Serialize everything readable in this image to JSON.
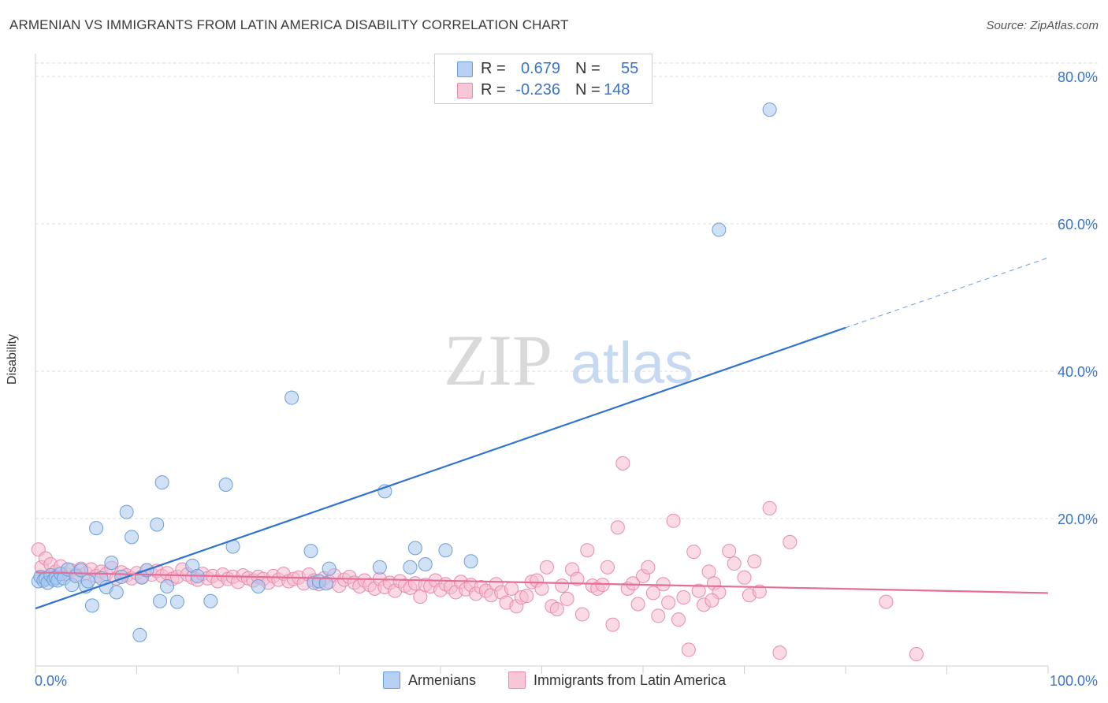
{
  "title": "ARMENIAN VS IMMIGRANTS FROM LATIN AMERICA DISABILITY CORRELATION CHART",
  "source": "Source: ZipAtlas.com",
  "watermark": {
    "zip": "ZIP",
    "atlas": "atlas"
  },
  "legend_top": {
    "rows": [
      {
        "r_label": "R =",
        "r_value": "0.679",
        "n_label": "N =",
        "n_value": "55"
      },
      {
        "r_label": "R =",
        "r_value": "-0.236",
        "n_label": "N =",
        "n_value": "148"
      }
    ]
  },
  "legend_bottom": {
    "items": [
      "Armenians",
      "Immigrants from Latin America"
    ]
  },
  "colors": {
    "blue_fill": "#a9c8ef",
    "blue_stroke": "#6a9fdc",
    "blue_line": "#2f72cf",
    "pink_fill": "#f5bcd0",
    "pink_stroke": "#e98aac",
    "pink_line": "#e46e98",
    "axis_text": "#3a74c9",
    "grid": "#dcdcdc"
  },
  "chart_data": {
    "type": "scatter",
    "title": "ARMENIAN VS IMMIGRANTS FROM LATIN AMERICA DISABILITY CORRELATION CHART",
    "xlabel": "",
    "ylabel": "Disability",
    "xlim": [
      0,
      100
    ],
    "ylim": [
      0,
      80
    ],
    "x_tick_labels": [
      "0.0%",
      "100.0%"
    ],
    "y_ticks": [
      20,
      40,
      60,
      80
    ],
    "y_tick_labels": [
      "20.0%",
      "40.0%",
      "60.0%",
      "80.0%"
    ],
    "grid": true,
    "series": [
      {
        "name": "Armenians",
        "trend": {
          "x": [
            0,
            80
          ],
          "y": [
            7.8,
            45.9
          ],
          "dashed_to": [
            100,
            55.4
          ]
        },
        "points": [
          [
            0.3,
            11.5
          ],
          [
            0.5,
            12.1
          ],
          [
            0.8,
            11.6
          ],
          [
            1.0,
            11.8
          ],
          [
            1.2,
            11.3
          ],
          [
            1.5,
            12.3
          ],
          [
            1.8,
            11.7
          ],
          [
            2.0,
            12.0
          ],
          [
            2.2,
            11.6
          ],
          [
            2.5,
            12.5
          ],
          [
            2.8,
            11.9
          ],
          [
            3.2,
            13.1
          ],
          [
            3.6,
            11.0
          ],
          [
            4.0,
            12.2
          ],
          [
            4.5,
            13.0
          ],
          [
            5.0,
            10.8
          ],
          [
            5.2,
            11.5
          ],
          [
            5.6,
            8.2
          ],
          [
            6.0,
            18.7
          ],
          [
            6.5,
            11.9
          ],
          [
            7.0,
            10.7
          ],
          [
            7.5,
            14.0
          ],
          [
            8.0,
            10.0
          ],
          [
            8.5,
            12.1
          ],
          [
            9.0,
            20.9
          ],
          [
            9.5,
            17.5
          ],
          [
            10.3,
            4.2
          ],
          [
            10.5,
            12.0
          ],
          [
            11.0,
            13.0
          ],
          [
            12.0,
            19.2
          ],
          [
            12.3,
            8.8
          ],
          [
            12.5,
            24.9
          ],
          [
            13.0,
            10.8
          ],
          [
            14.0,
            8.7
          ],
          [
            15.5,
            13.6
          ],
          [
            16.0,
            12.2
          ],
          [
            17.3,
            8.8
          ],
          [
            18.8,
            24.6
          ],
          [
            19.5,
            16.2
          ],
          [
            22.0,
            10.8
          ],
          [
            25.3,
            36.4
          ],
          [
            27.2,
            15.6
          ],
          [
            27.5,
            11.3
          ],
          [
            28.0,
            11.5
          ],
          [
            28.7,
            11.2
          ],
          [
            29.0,
            13.2
          ],
          [
            34.5,
            23.7
          ],
          [
            34.0,
            13.4
          ],
          [
            37.0,
            13.4
          ],
          [
            37.5,
            16.0
          ],
          [
            38.5,
            13.8
          ],
          [
            40.5,
            15.7
          ],
          [
            43.0,
            14.2
          ],
          [
            67.5,
            59.2
          ],
          [
            72.5,
            75.5
          ]
        ]
      },
      {
        "name": "Immigrants from Latin America",
        "trend": {
          "x": [
            0,
            100
          ],
          "y": [
            12.7,
            9.9
          ]
        },
        "points": [
          [
            0.3,
            15.8
          ],
          [
            0.6,
            13.4
          ],
          [
            1.0,
            14.6
          ],
          [
            1.5,
            13.8
          ],
          [
            2.0,
            12.8
          ],
          [
            2.5,
            13.5
          ],
          [
            3.0,
            12.5
          ],
          [
            3.5,
            13.0
          ],
          [
            4.0,
            12.4
          ],
          [
            4.5,
            13.2
          ],
          [
            5.0,
            12.6
          ],
          [
            5.5,
            13.1
          ],
          [
            6.0,
            12.2
          ],
          [
            6.5,
            12.8
          ],
          [
            7.0,
            12.5
          ],
          [
            7.5,
            13.3
          ],
          [
            8.0,
            11.9
          ],
          [
            8.5,
            12.7
          ],
          [
            9.0,
            12.3
          ],
          [
            9.5,
            11.9
          ],
          [
            10.0,
            12.6
          ],
          [
            10.5,
            12.1
          ],
          [
            11.0,
            13.0
          ],
          [
            11.5,
            12.4
          ],
          [
            12.0,
            12.9
          ],
          [
            12.5,
            12.2
          ],
          [
            13.0,
            12.6
          ],
          [
            13.5,
            11.8
          ],
          [
            14.0,
            12.1
          ],
          [
            14.5,
            13.1
          ],
          [
            15.0,
            12.4
          ],
          [
            15.5,
            12.0
          ],
          [
            16.0,
            11.7
          ],
          [
            16.5,
            12.5
          ],
          [
            17.0,
            11.9
          ],
          [
            17.5,
            12.2
          ],
          [
            18.0,
            11.5
          ],
          [
            18.5,
            12.4
          ],
          [
            19.0,
            11.8
          ],
          [
            19.5,
            12.1
          ],
          [
            20.0,
            11.4
          ],
          [
            20.5,
            12.3
          ],
          [
            21.0,
            11.9
          ],
          [
            21.5,
            11.6
          ],
          [
            22.0,
            12.1
          ],
          [
            22.5,
            11.8
          ],
          [
            23.0,
            11.3
          ],
          [
            23.5,
            12.2
          ],
          [
            24.0,
            11.7
          ],
          [
            24.5,
            12.5
          ],
          [
            25.0,
            11.5
          ],
          [
            25.5,
            11.8
          ],
          [
            26.0,
            12.0
          ],
          [
            26.5,
            11.2
          ],
          [
            27.0,
            12.4
          ],
          [
            27.5,
            11.6
          ],
          [
            28.0,
            11.1
          ],
          [
            28.5,
            11.9
          ],
          [
            29.0,
            11.4
          ],
          [
            29.5,
            12.3
          ],
          [
            30.0,
            10.9
          ],
          [
            30.5,
            11.7
          ],
          [
            31.0,
            12.1
          ],
          [
            31.5,
            11.3
          ],
          [
            32.0,
            10.8
          ],
          [
            32.5,
            11.6
          ],
          [
            33.0,
            11.0
          ],
          [
            33.5,
            10.5
          ],
          [
            34.0,
            11.8
          ],
          [
            34.5,
            10.7
          ],
          [
            35.0,
            11.3
          ],
          [
            35.5,
            10.2
          ],
          [
            36.0,
            11.5
          ],
          [
            36.5,
            10.9
          ],
          [
            37.0,
            10.6
          ],
          [
            37.5,
            11.2
          ],
          [
            38.0,
            9.4
          ],
          [
            38.5,
            11.0
          ],
          [
            39.0,
            10.8
          ],
          [
            39.5,
            11.6
          ],
          [
            40.0,
            10.3
          ],
          [
            40.5,
            11.1
          ],
          [
            41.0,
            10.7
          ],
          [
            41.5,
            10.0
          ],
          [
            42.0,
            11.4
          ],
          [
            42.5,
            10.4
          ],
          [
            43.0,
            11.0
          ],
          [
            43.5,
            9.8
          ],
          [
            44.0,
            10.7
          ],
          [
            44.5,
            10.2
          ],
          [
            45.0,
            9.6
          ],
          [
            45.5,
            11.1
          ],
          [
            46.0,
            10.0
          ],
          [
            46.5,
            8.6
          ],
          [
            47.0,
            10.5
          ],
          [
            47.5,
            8.1
          ],
          [
            48.0,
            9.3
          ],
          [
            48.5,
            9.5
          ],
          [
            49.0,
            11.4
          ],
          [
            49.5,
            11.6
          ],
          [
            50.0,
            10.5
          ],
          [
            50.5,
            13.4
          ],
          [
            51.0,
            8.1
          ],
          [
            51.5,
            7.7
          ],
          [
            52.0,
            10.9
          ],
          [
            52.5,
            9.1
          ],
          [
            53.0,
            13.1
          ],
          [
            53.5,
            11.8
          ],
          [
            54.0,
            7.0
          ],
          [
            54.5,
            15.7
          ],
          [
            55.0,
            10.9
          ],
          [
            55.5,
            10.5
          ],
          [
            56.0,
            11.0
          ],
          [
            56.5,
            13.4
          ],
          [
            57.0,
            5.6
          ],
          [
            57.5,
            18.8
          ],
          [
            58.0,
            27.5
          ],
          [
            58.5,
            10.5
          ],
          [
            59.0,
            11.2
          ],
          [
            59.5,
            8.4
          ],
          [
            60.0,
            12.2
          ],
          [
            60.5,
            13.4
          ],
          [
            61.0,
            9.9
          ],
          [
            61.5,
            6.8
          ],
          [
            62.0,
            11.1
          ],
          [
            62.5,
            8.6
          ],
          [
            63.0,
            19.7
          ],
          [
            63.5,
            6.3
          ],
          [
            64.0,
            9.3
          ],
          [
            64.5,
            2.2
          ],
          [
            65.0,
            15.5
          ],
          [
            65.5,
            10.2
          ],
          [
            66.0,
            8.3
          ],
          [
            66.5,
            12.8
          ],
          [
            67.0,
            11.2
          ],
          [
            67.5,
            10.0
          ],
          [
            68.5,
            15.6
          ],
          [
            69.0,
            13.9
          ],
          [
            70.0,
            12.0
          ],
          [
            71.0,
            14.2
          ],
          [
            72.5,
            21.4
          ],
          [
            73.5,
            1.8
          ],
          [
            74.5,
            16.8
          ],
          [
            84.0,
            8.7
          ],
          [
            87.0,
            1.6
          ],
          [
            70.5,
            9.6
          ],
          [
            66.8,
            8.9
          ],
          [
            71.5,
            10.1
          ]
        ]
      }
    ]
  }
}
